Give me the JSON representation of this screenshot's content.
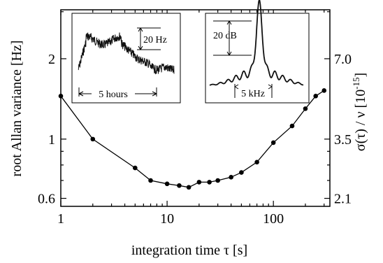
{
  "chart_data": {
    "type": "line",
    "xlabel": "integration time τ [s]",
    "ylabel": "root Allan variance [Hz]",
    "ylabel_right": "σ(τ) / ν  [10",
    "ylabel_right_exp": "-15",
    "ylabel_right_close": "]",
    "xscale": "log",
    "yscale": "log",
    "xlim": [
      1,
      340
    ],
    "ylim": [
      0.56,
      3.05
    ],
    "x_ticks": [
      1,
      10,
      100
    ],
    "x_tick_labels": [
      "1",
      "10",
      "100"
    ],
    "y_ticks": [
      0.6,
      1,
      2
    ],
    "y_tick_labels": [
      "0.6",
      "1",
      "2"
    ],
    "y2_tick_labels": [
      "2.1",
      "3.5",
      "7.0"
    ],
    "grid": false,
    "legend": "none",
    "series": [
      {
        "x": [
          1,
          2,
          5,
          7,
          10,
          13,
          16,
          20,
          25,
          30,
          40,
          50,
          70,
          100,
          150,
          200,
          250,
          300
        ],
        "y": [
          1.45,
          1.0,
          0.78,
          0.7,
          0.68,
          0.67,
          0.66,
          0.69,
          0.69,
          0.7,
          0.72,
          0.75,
          0.82,
          0.97,
          1.12,
          1.3,
          1.45,
          1.52
        ]
      }
    ],
    "insets": [
      {
        "name": "time trace",
        "scale_label": "20 Hz",
        "span_label": "5 hours"
      },
      {
        "name": "spectrum",
        "scale_label": "20 dB",
        "span_label": "5 kHz"
      }
    ]
  }
}
